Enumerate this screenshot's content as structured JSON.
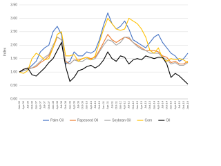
{
  "chart_data": {
    "type": "line",
    "y_label": "Index",
    "categories": [
      "Jan-06",
      "Apr-06",
      "Jul-06",
      "Oct-06",
      "Jan-07",
      "Apr-07",
      "Jul-07",
      "Oct-07",
      "Jan-08",
      "Apr-08",
      "Jul-08",
      "Oct-08",
      "Jan-09",
      "Apr-09",
      "Jul-09",
      "Oct-09",
      "Jan-10",
      "Apr-10",
      "Jul-10",
      "Oct-10",
      "Jan-11",
      "Apr-11",
      "Jul-11",
      "Oct-11",
      "Jan-12",
      "Apr-12",
      "Jul-12",
      "Oct-12",
      "Jan-13",
      "Apr-13",
      "Jul-13",
      "Oct-13",
      "Jan-14",
      "Apr-14",
      "Jul-14",
      "Oct-14",
      "Jan-15",
      "Apr-15",
      "Jul-15",
      "Oct-15",
      "Jan-16"
    ],
    "series": [
      {
        "name": "Palm Oil",
        "color": "#4472c4",
        "values": [
          1.0,
          1.05,
          1.1,
          1.25,
          1.4,
          1.75,
          1.9,
          2.0,
          2.5,
          2.7,
          2.4,
          1.3,
          1.4,
          1.75,
          1.6,
          1.6,
          1.75,
          1.7,
          1.8,
          2.2,
          2.75,
          3.2,
          2.8,
          2.6,
          2.7,
          2.9,
          2.6,
          2.2,
          2.1,
          2.0,
          1.9,
          2.1,
          2.3,
          2.4,
          2.1,
          1.9,
          1.7,
          1.6,
          1.4,
          1.5,
          1.7
        ]
      },
      {
        "name": "Rapeseed Oil",
        "color": "#ed7d31",
        "values": [
          1.0,
          1.1,
          1.15,
          1.15,
          1.2,
          1.35,
          1.45,
          1.6,
          1.9,
          2.3,
          2.2,
          1.4,
          1.3,
          1.45,
          1.45,
          1.5,
          1.55,
          1.5,
          1.55,
          1.8,
          2.1,
          2.4,
          2.2,
          2.1,
          2.2,
          2.3,
          2.25,
          2.1,
          2.0,
          1.9,
          1.8,
          1.8,
          1.8,
          1.75,
          1.6,
          1.55,
          1.35,
          1.4,
          1.3,
          1.3,
          1.4
        ]
      },
      {
        "name": "Soybean Oil",
        "color": "#a5a5a5",
        "values": [
          1.0,
          1.05,
          1.1,
          1.15,
          1.25,
          1.4,
          1.55,
          1.65,
          2.0,
          2.3,
          2.2,
          1.35,
          1.3,
          1.45,
          1.4,
          1.4,
          1.5,
          1.45,
          1.5,
          1.75,
          2.0,
          2.2,
          2.15,
          2.0,
          2.1,
          2.3,
          2.3,
          2.1,
          1.95,
          1.85,
          1.8,
          1.7,
          1.7,
          1.7,
          1.55,
          1.45,
          1.3,
          1.35,
          1.25,
          1.25,
          1.35
        ]
      },
      {
        "name": "Corn",
        "color": "#ffc000",
        "values": [
          1.0,
          0.95,
          1.05,
          1.5,
          1.7,
          1.6,
          1.45,
          1.5,
          1.9,
          2.4,
          2.5,
          1.6,
          1.6,
          1.65,
          1.4,
          1.5,
          1.55,
          1.45,
          1.6,
          2.1,
          2.6,
          3.0,
          2.8,
          2.6,
          2.55,
          2.6,
          3.0,
          2.9,
          2.8,
          2.6,
          2.3,
          1.8,
          1.7,
          1.9,
          1.5,
          1.4,
          1.5,
          1.45,
          1.5,
          1.45,
          1.35
        ]
      },
      {
        "name": "Oil",
        "color": "#000000",
        "values": [
          1.0,
          1.1,
          1.15,
          0.9,
          0.85,
          1.0,
          1.15,
          1.35,
          1.5,
          1.8,
          2.1,
          1.2,
          0.65,
          0.8,
          1.05,
          1.1,
          1.2,
          1.25,
          1.15,
          1.25,
          1.45,
          1.75,
          1.5,
          1.4,
          1.6,
          1.55,
          1.3,
          1.45,
          1.5,
          1.45,
          1.6,
          1.55,
          1.5,
          1.55,
          1.55,
          1.3,
          0.8,
          0.95,
          0.85,
          0.7,
          0.55
        ]
      }
    ],
    "ylim": [
      0,
      3.5
    ],
    "yticks": [
      {
        "value": 0,
        "label": "0.00"
      },
      {
        "value": 0.5,
        "label": "0.50"
      },
      {
        "value": 1,
        "label": "1.00"
      },
      {
        "value": 1.5,
        "label": "1.50"
      },
      {
        "value": 2,
        "label": "2.00"
      },
      {
        "value": 2.5,
        "label": "2.50"
      },
      {
        "value": 3,
        "label": "3.00"
      },
      {
        "value": 3.5,
        "label": "3.50"
      }
    ],
    "grid": true
  }
}
